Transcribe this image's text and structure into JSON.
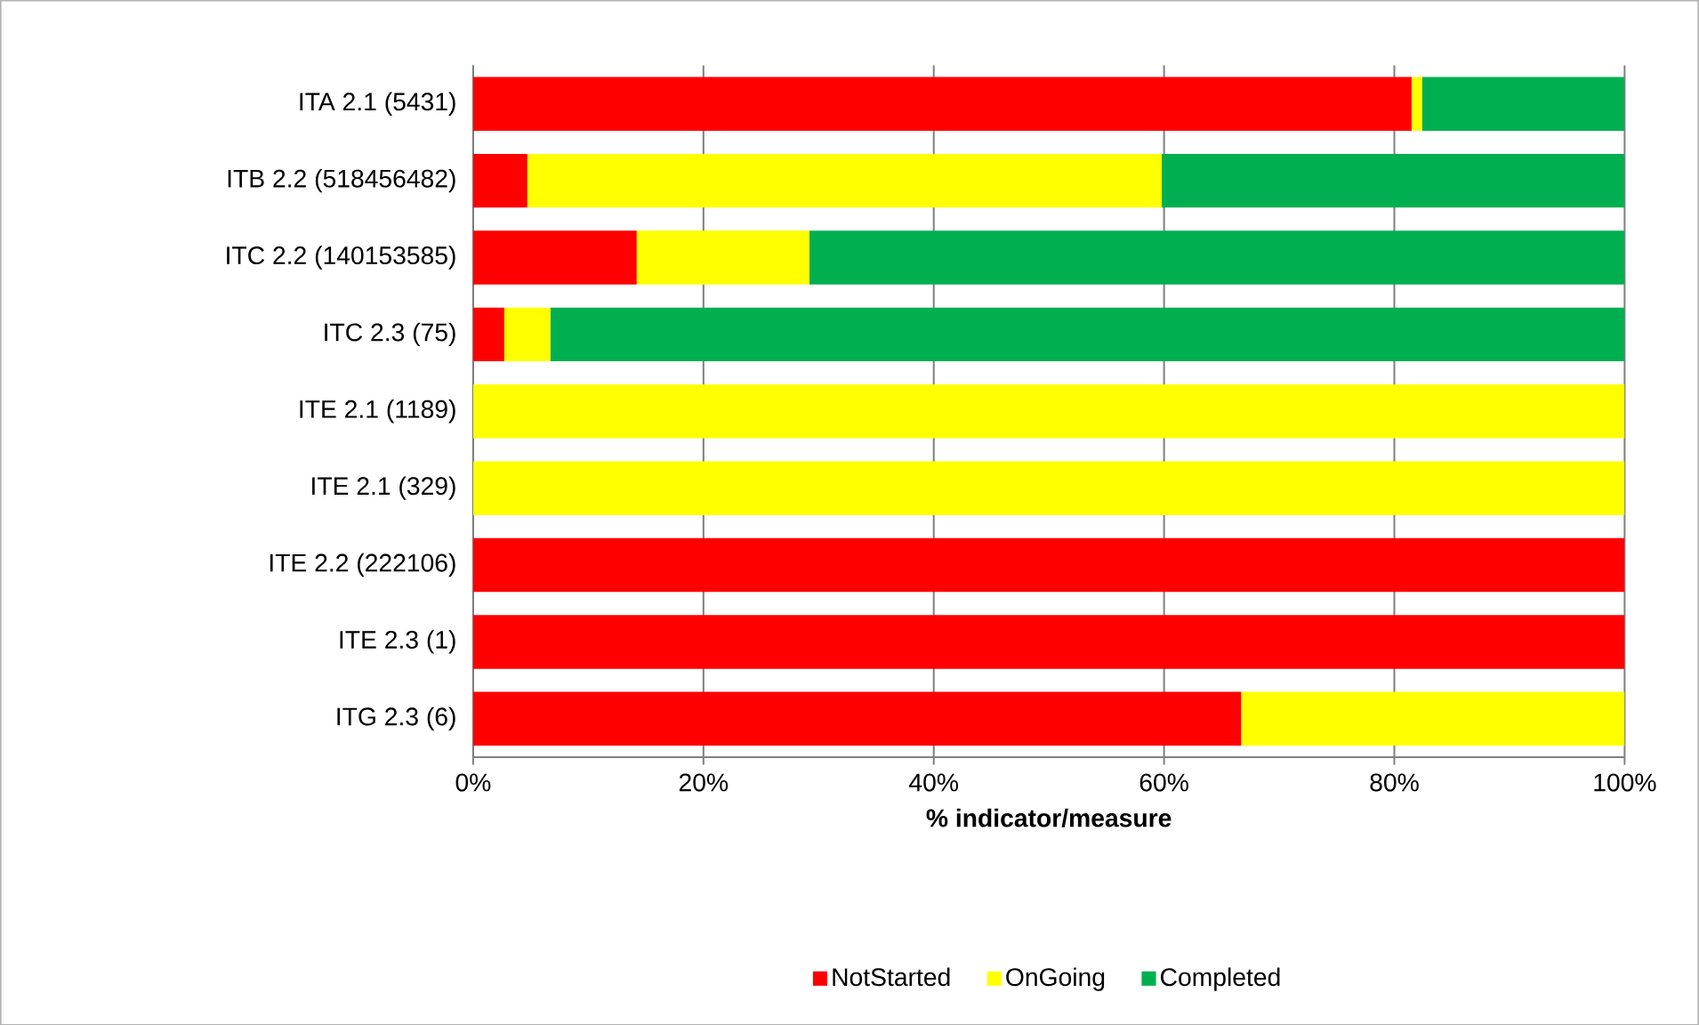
{
  "chart_data": {
    "type": "bar",
    "orientation": "horizontal",
    "stacked": true,
    "xlabel": "**% indicator/measure**",
    "categories": [
      "ITA 2.1 (5431)",
      "ITB 2.2 (518456482)",
      "ITC 2.2 (140153585)",
      "ITC 2.3 (75)",
      "ITE 2.1 (1189)",
      "ITE 2.1 (329)",
      "ITE 2.2 (222106)",
      "ITE 2.3 (1)",
      "ITG 2.3 (6)"
    ],
    "series": [
      {
        "name": "NotStarted",
        "color": "#ff0000",
        "values": [
          81.5,
          4.7,
          14.2,
          2.7,
          0,
          0,
          100,
          100,
          66.7
        ]
      },
      {
        "name": "OnGoing",
        "color": "#ffff00",
        "values": [
          0.9,
          55.1,
          15.0,
          4.0,
          100,
          100,
          0,
          0,
          33.3
        ]
      },
      {
        "name": "Completed",
        "color": "#00b050",
        "values": [
          17.6,
          40.2,
          70.8,
          93.3,
          0,
          0,
          0,
          0,
          0
        ]
      }
    ],
    "xlim": [
      0,
      100
    ],
    "xticks": [
      {
        "value": 0,
        "label": "0%"
      },
      {
        "value": 20,
        "label": "20%"
      },
      {
        "value": 40,
        "label": "40%"
      },
      {
        "value": 60,
        "label": "60%"
      },
      {
        "value": 80,
        "label": "80%"
      },
      {
        "value": 100,
        "label": "100%"
      }
    ],
    "grid": "x",
    "legend": "bottom"
  }
}
